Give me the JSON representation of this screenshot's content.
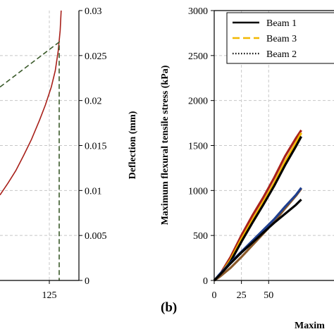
{
  "chart_data": [
    {
      "panel": "a",
      "type": "line",
      "x_ticks": [
        "125"
      ],
      "y2_ticks": [
        "0",
        "0.005",
        "0.01",
        "0.015",
        "0.02",
        "0.025",
        "0.03"
      ],
      "y2label": "Deflection (mm)",
      "xlim": [
        100,
        140
      ],
      "y2lim": [
        0,
        0.03
      ],
      "grid": true,
      "series": [
        {
          "color": "#a8201a",
          "style": "solid",
          "x": [
            100,
            104,
            108,
            112,
            116,
            120,
            123,
            126,
            128,
            129.5,
            130.5,
            131
          ],
          "y": [
            0.0095,
            0.0108,
            0.0122,
            0.0139,
            0.0157,
            0.0178,
            0.0195,
            0.0215,
            0.0233,
            0.0255,
            0.0278,
            0.03
          ]
        },
        {
          "color": "#3a5a2a",
          "style": "dashed",
          "x": [
            100,
            130,
            130
          ],
          "y": [
            0.0215,
            0.0265,
            0
          ]
        }
      ]
    },
    {
      "panel": "b",
      "label": "(b)",
      "type": "line",
      "ylabel": "Maximum flexural tensile stress (kPa)",
      "xlabel": "Maxim",
      "x_ticks": [
        "0",
        "25",
        "50"
      ],
      "y_ticks": [
        "0",
        "500",
        "1000",
        "1500",
        "2000",
        "2500",
        "3000"
      ],
      "xlim": [
        0,
        110
      ],
      "ylim": [
        0,
        3000
      ],
      "grid": true,
      "legend": {
        "position": "top-right",
        "entries": [
          {
            "label": "Beam 1",
            "color": "#000000",
            "style": "solid"
          },
          {
            "label": "Beam 3",
            "color": "#f2b800",
            "style": "dashed"
          },
          {
            "label": "Beam 2",
            "color": "#000000",
            "style": "dotted"
          }
        ]
      },
      "series": [
        {
          "color": "#a8201a",
          "x": [
            0,
            5,
            15,
            25,
            35,
            45,
            55,
            65,
            75,
            80
          ],
          "y": [
            0,
            60,
            260,
            500,
            720,
            920,
            1140,
            1380,
            1580,
            1670
          ]
        },
        {
          "color": "#f2b800",
          "x": [
            0,
            5,
            15,
            25,
            35,
            45,
            55,
            65,
            75,
            80
          ],
          "y": [
            0,
            55,
            230,
            460,
            670,
            870,
            1080,
            1320,
            1530,
            1640
          ]
        },
        {
          "color": "#000000",
          "x": [
            0,
            5,
            15,
            25,
            35,
            45,
            55,
            65,
            75,
            80
          ],
          "y": [
            0,
            50,
            210,
            430,
            640,
            840,
            1050,
            1280,
            1490,
            1600
          ]
        },
        {
          "color": "#8b5a2b",
          "x": [
            0,
            5,
            15,
            25,
            35,
            45,
            55,
            65,
            75,
            80
          ],
          "y": [
            0,
            40,
            140,
            260,
            390,
            520,
            650,
            800,
            940,
            1020
          ]
        },
        {
          "color": "#1f3f8f",
          "x": [
            0,
            5,
            15,
            25,
            35,
            45,
            55,
            65,
            75,
            80
          ],
          "y": [
            0,
            70,
            200,
            320,
            440,
            560,
            680,
            820,
            950,
            1030
          ]
        },
        {
          "color": "#000000",
          "x": [
            0,
            5,
            15,
            25,
            35,
            45,
            55,
            65,
            75,
            80
          ],
          "y": [
            0,
            60,
            190,
            310,
            420,
            530,
            640,
            740,
            840,
            900
          ]
        }
      ]
    }
  ]
}
